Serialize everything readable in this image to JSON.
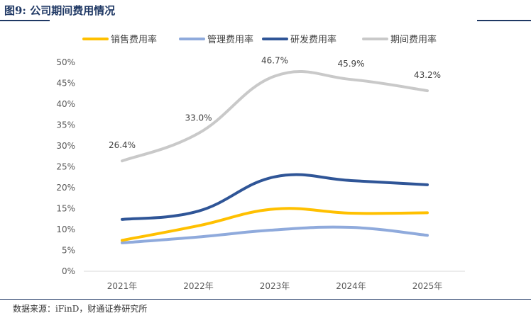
{
  "header": {
    "title": "图9: 公司期间费用情况"
  },
  "footer": {
    "source": "数据来源：iFinD，财通证券研究所"
  },
  "chart_data": {
    "type": "line",
    "title": "图9: 公司期间费用情况",
    "categories": [
      "2021年",
      "2022年",
      "2023年",
      "2024年",
      "2025年"
    ],
    "ylim": [
      0,
      50
    ],
    "yticks": [
      "0%",
      "5%",
      "10%",
      "15%",
      "20%",
      "25%",
      "30%",
      "35%",
      "40%",
      "45%",
      "50%"
    ],
    "grid": false,
    "legend": "top",
    "series": [
      {
        "name": "销售费用率",
        "color": "#ffc000",
        "values": [
          7.4,
          10.9,
          14.9,
          13.9,
          14.0
        ]
      },
      {
        "name": "管理费用率",
        "color": "#8faadc",
        "values": [
          6.8,
          8.2,
          9.9,
          10.5,
          8.6
        ]
      },
      {
        "name": "研发费用率",
        "color": "#2f5597",
        "values": [
          12.4,
          14.4,
          22.6,
          21.7,
          20.7
        ]
      },
      {
        "name": "期间费用率",
        "color": "#c9c9c9",
        "values": [
          26.4,
          33.0,
          46.7,
          45.9,
          43.2
        ],
        "labels": [
          "26.4%",
          "33.0%",
          "46.7%",
          "45.9%",
          "43.2%"
        ]
      }
    ]
  }
}
